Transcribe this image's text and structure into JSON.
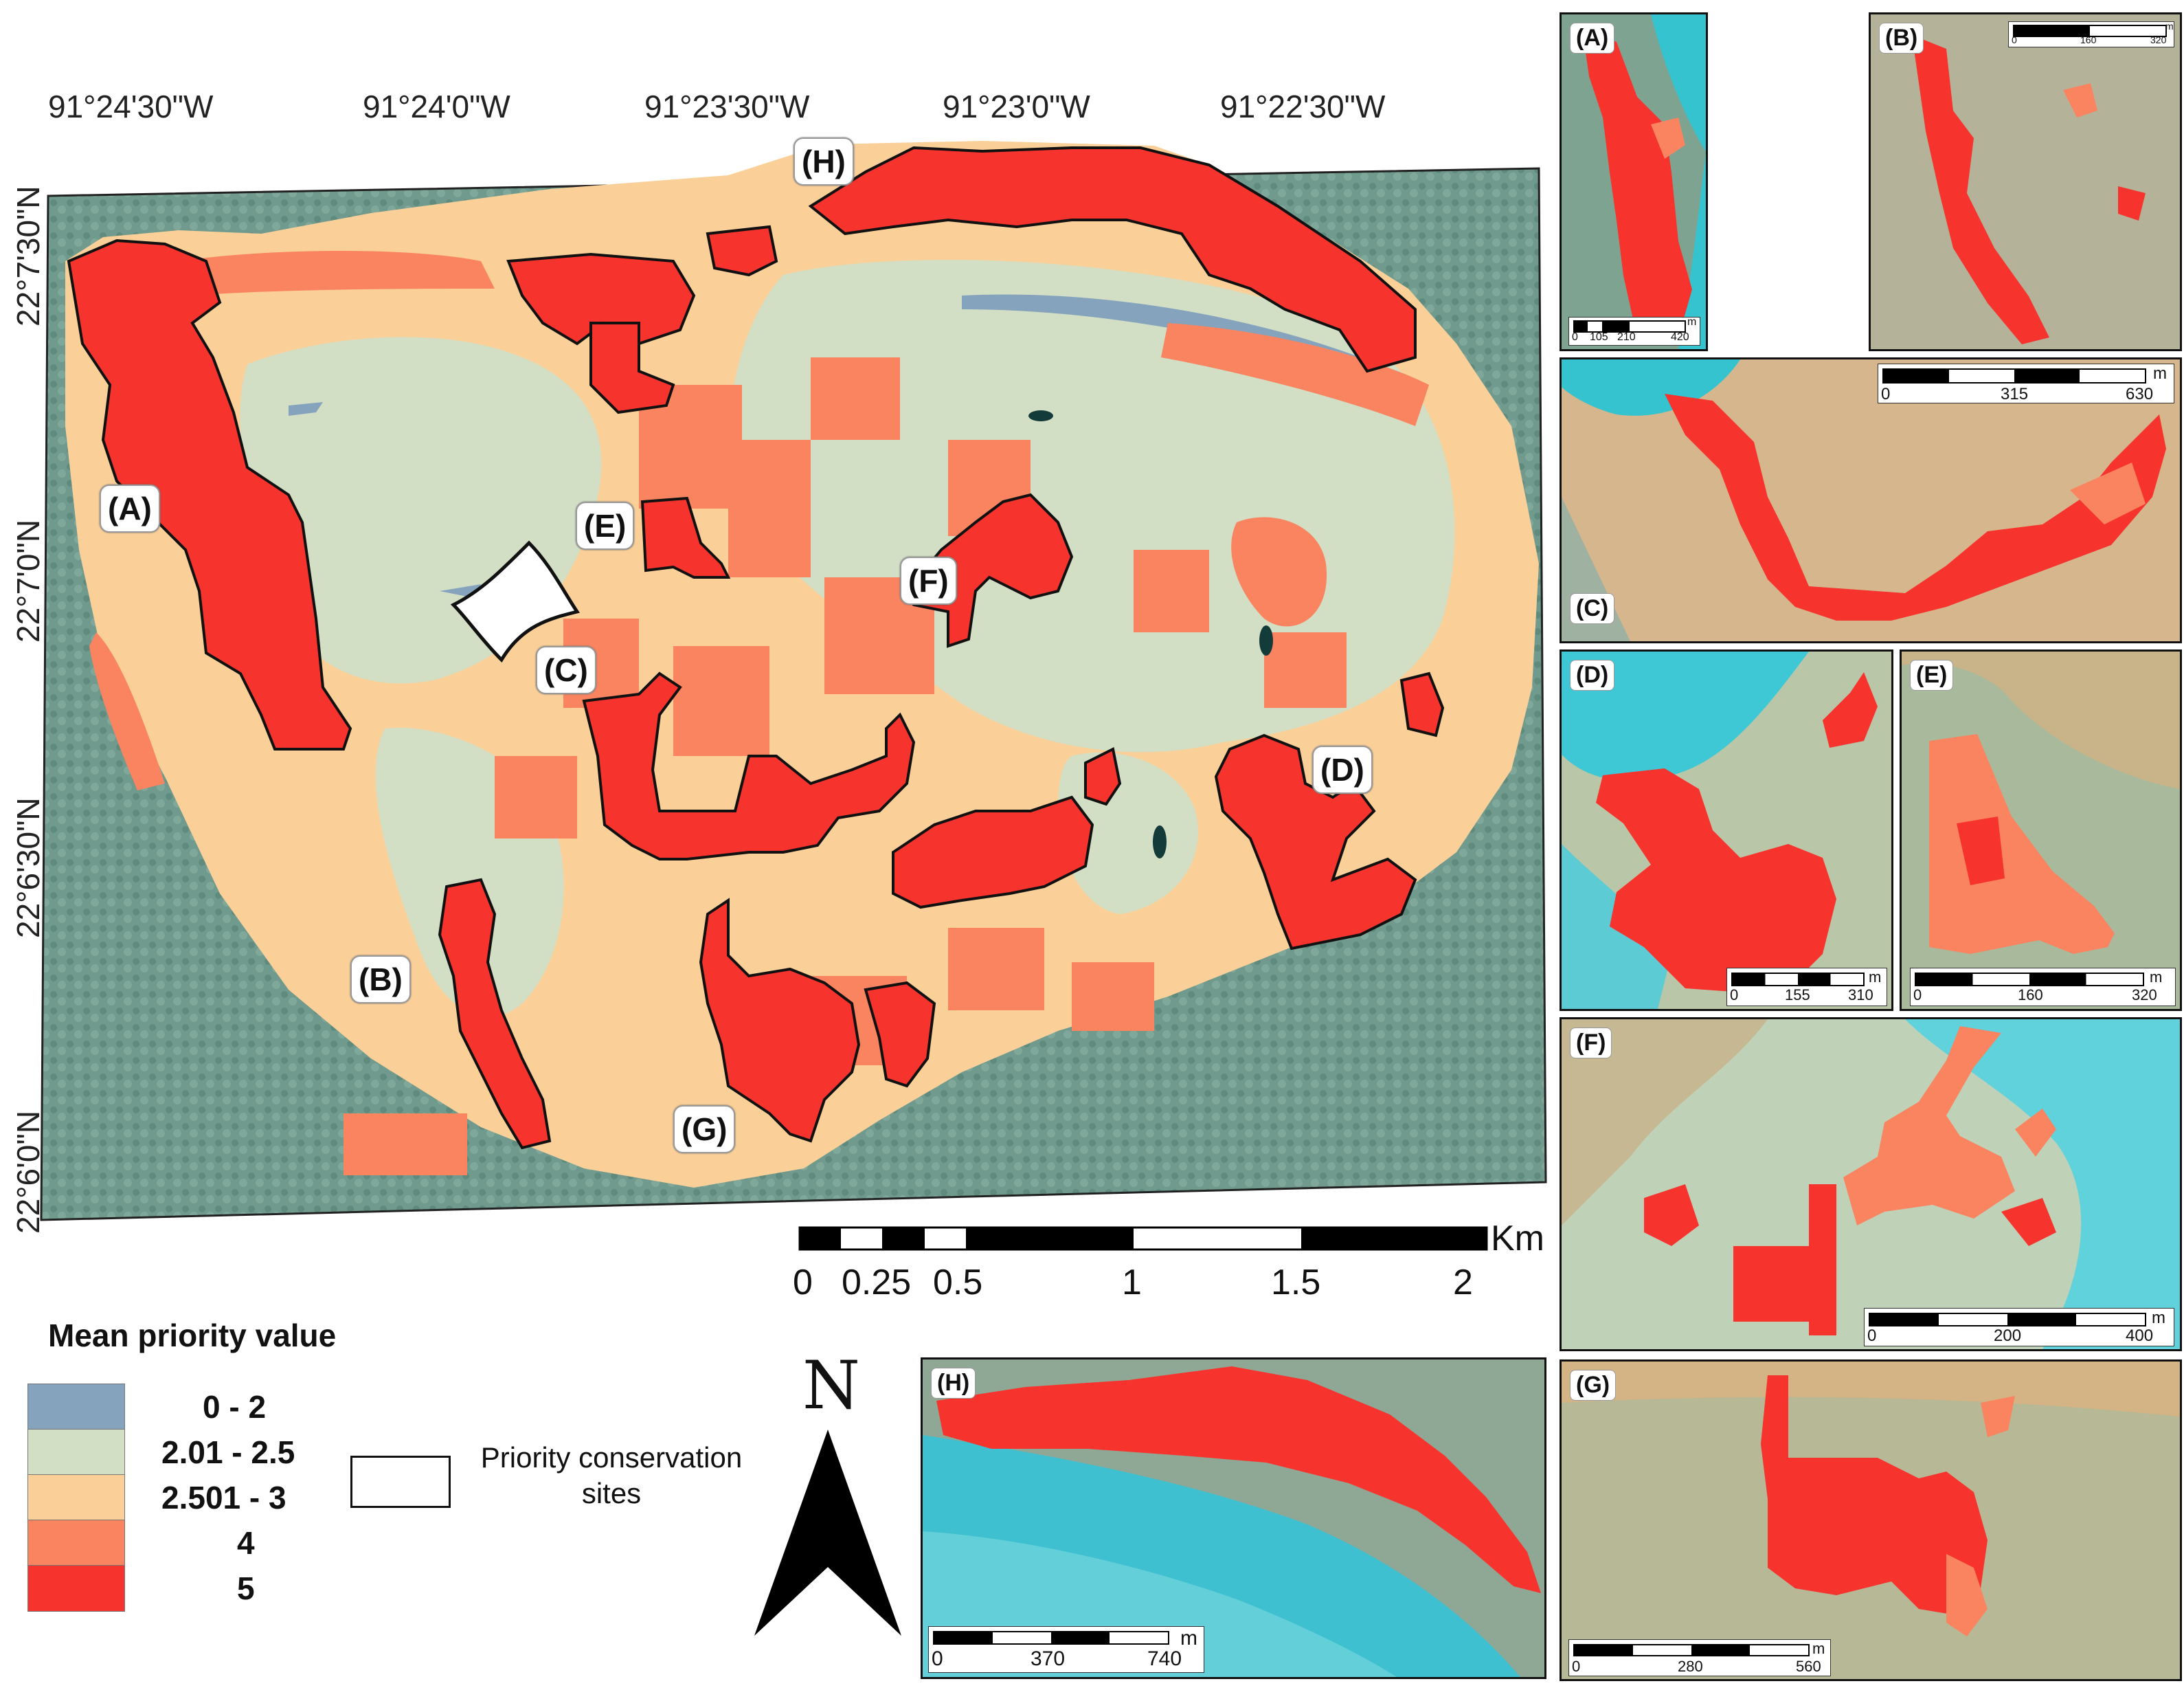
{
  "main_map": {
    "lon_labels": [
      "91°24'30\"W",
      "91°24'0\"W",
      "91°23'30\"W",
      "91°23'0\"W",
      "91°22'30\"W"
    ],
    "lat_labels": [
      "22°7'30\"N",
      "22°7'0\"N",
      "22°6'30\"N",
      "22°6'0\"N"
    ],
    "site_callouts": [
      "(A)",
      "(B)",
      "(C)",
      "(D)",
      "(E)",
      "(F)",
      "(G)",
      "(H)"
    ]
  },
  "scale_bar": {
    "ticks": [
      "0",
      "0.25",
      "0.5",
      "1",
      "1.5",
      "2"
    ],
    "unit": "Km"
  },
  "north_arrow": {
    "label": "N"
  },
  "legend": {
    "title": "Mean priority value",
    "classes": [
      {
        "label": "0 - 2",
        "color": "#85a3bd"
      },
      {
        "label": "2.01 - 2.5",
        "color": "#d2dfc5"
      },
      {
        "label": "2.501 - 3",
        "color": "#fbcf98"
      },
      {
        "label": "4",
        "color": "#fa8460"
      },
      {
        "label": "5",
        "color": "#f6332c"
      }
    ],
    "outline_label": "Priority conservation sites"
  },
  "insets": [
    {
      "label": "(A)",
      "scale": [
        "0",
        "105",
        "210",
        "420"
      ],
      "unit": "m"
    },
    {
      "label": "(B)",
      "scale": [
        "0",
        "160",
        "320"
      ],
      "unit": "m"
    },
    {
      "label": "(C)",
      "scale": [
        "0",
        "315",
        "630"
      ],
      "unit": "m"
    },
    {
      "label": "(D)",
      "scale": [
        "0",
        "155",
        "310"
      ],
      "unit": "m"
    },
    {
      "label": "(E)",
      "scale": [
        "0",
        "160",
        "320"
      ],
      "unit": "m"
    },
    {
      "label": "(F)",
      "scale": [
        "0",
        "200",
        "400"
      ],
      "unit": "m"
    },
    {
      "label": "(G)",
      "scale": [
        "0",
        "280",
        "560"
      ],
      "unit": "m"
    },
    {
      "label": "(H)",
      "scale": [
        "0",
        "370",
        "740"
      ],
      "unit": "m"
    }
  ]
}
